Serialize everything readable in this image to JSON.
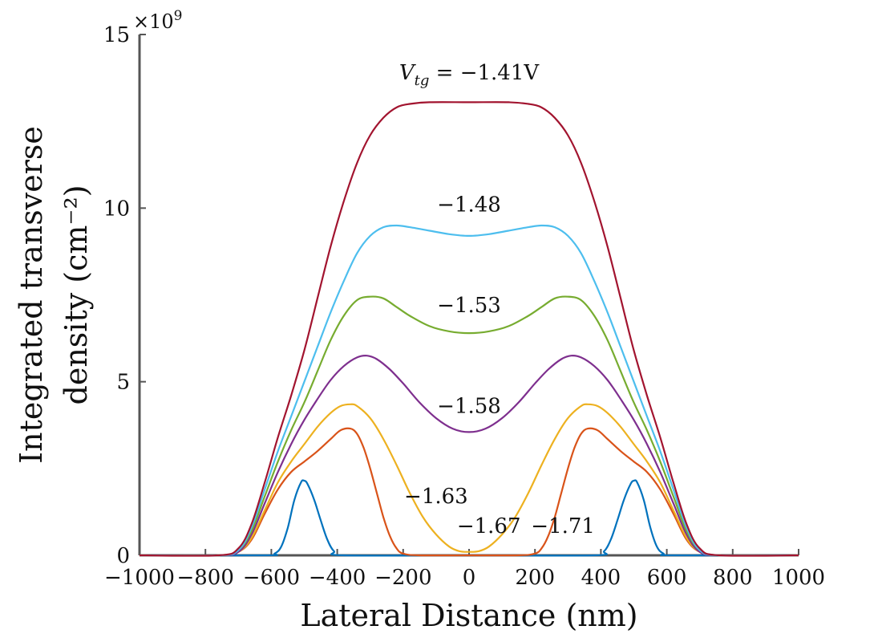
{
  "chart_data": {
    "type": "line",
    "title": "",
    "xlabel": "Lateral Distance (nm)",
    "ylabel_line1": "Integrated transverse",
    "ylabel_line2": "density (cm⁻²)",
    "xlim": [
      -1000,
      1000
    ],
    "ylim": [
      0,
      15
    ],
    "y_scale_label": "×10",
    "y_scale_exp": "9",
    "x_ticks": [
      -1000,
      -800,
      -600,
      -400,
      -200,
      0,
      200,
      400,
      600,
      800,
      1000
    ],
    "x_tick_labels": [
      "−1000",
      "−800",
      "−600",
      "−400",
      "−200",
      "0",
      "200",
      "400",
      "600",
      "800",
      "1000"
    ],
    "y_ticks": [
      0,
      5,
      10,
      15
    ],
    "y_tick_labels": [
      "0",
      "5",
      "10",
      "15"
    ],
    "grid": false,
    "series": [
      {
        "name": "V_tg = −1.41V",
        "color": "#A2142F",
        "x": [
          -1000,
          -760,
          -700,
          -660,
          -620,
          -580,
          -540,
          -500,
          -460,
          -420,
          -380,
          -340,
          -300,
          -260,
          -220,
          -180,
          -120,
          0,
          120,
          180,
          220,
          260,
          300,
          340,
          380,
          420,
          460,
          500,
          540,
          580,
          620,
          660,
          700,
          760,
          1000
        ],
        "y": [
          0,
          0,
          0.2,
          0.9,
          2.1,
          3.4,
          4.6,
          5.9,
          7.4,
          8.9,
          10.2,
          11.3,
          12.1,
          12.6,
          12.9,
          13.0,
          13.05,
          13.05,
          13.05,
          13.0,
          12.9,
          12.6,
          12.1,
          11.3,
          10.2,
          8.9,
          7.4,
          5.9,
          4.6,
          3.4,
          2.1,
          0.9,
          0.2,
          0,
          0
        ]
      },
      {
        "name": "−1.48",
        "color": "#4DBEEE",
        "x": [
          -1000,
          -760,
          -700,
          -660,
          -620,
          -580,
          -540,
          -500,
          -460,
          -420,
          -380,
          -340,
          -300,
          -260,
          -220,
          -180,
          -120,
          -60,
          0,
          60,
          120,
          180,
          220,
          260,
          300,
          340,
          380,
          420,
          460,
          500,
          540,
          580,
          620,
          660,
          700,
          760,
          1000
        ],
        "y": [
          0,
          0,
          0.15,
          0.8,
          1.9,
          3.0,
          4.0,
          5.0,
          6.0,
          7.0,
          7.9,
          8.7,
          9.2,
          9.45,
          9.5,
          9.45,
          9.35,
          9.25,
          9.2,
          9.25,
          9.35,
          9.45,
          9.5,
          9.45,
          9.2,
          8.7,
          7.9,
          7.0,
          6.0,
          5.0,
          4.0,
          3.0,
          1.9,
          0.8,
          0.15,
          0,
          0
        ]
      },
      {
        "name": "−1.53",
        "color": "#77AC30",
        "x": [
          -1000,
          -760,
          -700,
          -660,
          -620,
          -580,
          -540,
          -500,
          -460,
          -420,
          -380,
          -340,
          -300,
          -260,
          -220,
          -180,
          -120,
          -60,
          0,
          60,
          120,
          180,
          220,
          260,
          300,
          340,
          380,
          420,
          460,
          500,
          540,
          580,
          620,
          660,
          700,
          760,
          1000
        ],
        "y": [
          0,
          0,
          0.15,
          0.7,
          1.7,
          2.7,
          3.6,
          4.4,
          5.3,
          6.2,
          6.9,
          7.35,
          7.45,
          7.4,
          7.15,
          6.9,
          6.6,
          6.45,
          6.4,
          6.45,
          6.6,
          6.9,
          7.15,
          7.4,
          7.45,
          7.35,
          6.9,
          6.2,
          5.3,
          4.4,
          3.6,
          2.7,
          1.7,
          0.7,
          0.15,
          0,
          0
        ]
      },
      {
        "name": "−1.58",
        "color": "#7E2F8E",
        "x": [
          -1000,
          -760,
          -700,
          -660,
          -620,
          -580,
          -540,
          -500,
          -460,
          -420,
          -380,
          -340,
          -310,
          -280,
          -240,
          -200,
          -150,
          -100,
          -50,
          0,
          50,
          100,
          150,
          200,
          240,
          280,
          310,
          340,
          380,
          420,
          460,
          500,
          540,
          580,
          620,
          660,
          700,
          760,
          1000
        ],
        "y": [
          0,
          0,
          0.1,
          0.6,
          1.5,
          2.4,
          3.2,
          3.9,
          4.5,
          5.05,
          5.45,
          5.7,
          5.75,
          5.65,
          5.35,
          4.95,
          4.4,
          3.95,
          3.65,
          3.55,
          3.65,
          3.95,
          4.4,
          4.95,
          5.35,
          5.65,
          5.75,
          5.7,
          5.45,
          5.05,
          4.5,
          3.9,
          3.2,
          2.4,
          1.5,
          0.6,
          0.1,
          0,
          0
        ]
      },
      {
        "name": "−1.63",
        "color": "#EDB120",
        "x": [
          -1000,
          -760,
          -700,
          -660,
          -620,
          -580,
          -540,
          -500,
          -460,
          -420,
          -390,
          -360,
          -340,
          -300,
          -260,
          -220,
          -180,
          -140,
          -100,
          -60,
          -30,
          0,
          30,
          60,
          100,
          140,
          180,
          220,
          260,
          300,
          340,
          360,
          390,
          420,
          460,
          500,
          540,
          580,
          620,
          660,
          700,
          760,
          1000
        ],
        "y": [
          0,
          0,
          0.1,
          0.5,
          1.3,
          2.1,
          2.7,
          3.2,
          3.7,
          4.1,
          4.3,
          4.35,
          4.3,
          3.95,
          3.35,
          2.6,
          1.8,
          1.1,
          0.6,
          0.25,
          0.12,
          0.1,
          0.12,
          0.25,
          0.6,
          1.1,
          1.8,
          2.6,
          3.35,
          3.95,
          4.3,
          4.35,
          4.3,
          4.1,
          3.7,
          3.2,
          2.7,
          2.1,
          1.3,
          0.5,
          0.1,
          0,
          0
        ]
      },
      {
        "name": "−1.67",
        "color": "#D95319",
        "x": [
          -1000,
          -760,
          -700,
          -660,
          -620,
          -580,
          -540,
          -500,
          -460,
          -420,
          -390,
          -360,
          -340,
          -320,
          -300,
          -280,
          -260,
          -240,
          -220,
          -200,
          -150,
          0,
          150,
          200,
          220,
          240,
          260,
          280,
          300,
          320,
          340,
          360,
          390,
          420,
          460,
          500,
          540,
          580,
          620,
          660,
          700,
          760,
          1000
        ],
        "y": [
          0,
          0,
          0.1,
          0.45,
          1.2,
          1.9,
          2.4,
          2.7,
          3.0,
          3.35,
          3.6,
          3.65,
          3.5,
          3.1,
          2.5,
          1.8,
          1.1,
          0.55,
          0.2,
          0.05,
          0,
          0,
          0,
          0.05,
          0.2,
          0.55,
          1.1,
          1.8,
          2.5,
          3.1,
          3.5,
          3.65,
          3.6,
          3.35,
          3.0,
          2.7,
          2.4,
          1.9,
          1.2,
          0.45,
          0.1,
          0,
          0
        ]
      },
      {
        "name": "−1.71",
        "color": "#0072BD",
        "x": [
          -1000,
          -620,
          -590,
          -570,
          -550,
          -530,
          -510,
          -500,
          -490,
          -470,
          -450,
          -430,
          -410,
          -380,
          0,
          380,
          410,
          430,
          450,
          470,
          490,
          500,
          510,
          530,
          550,
          570,
          590,
          620,
          1000
        ],
        "y": [
          0,
          0,
          0.05,
          0.25,
          0.8,
          1.6,
          2.1,
          2.15,
          2.05,
          1.6,
          1.0,
          0.45,
          0.12,
          0,
          0,
          0,
          0.12,
          0.45,
          1.0,
          1.6,
          2.05,
          2.15,
          2.1,
          1.6,
          0.8,
          0.25,
          0.05,
          0,
          0
        ]
      }
    ],
    "annotations": [
      {
        "text_main": "V",
        "text_sub": "tg",
        "text_rest": " = −1.41V",
        "x": 0,
        "y": 13.7
      },
      {
        "text": "−1.48",
        "x": 0,
        "y": 9.9
      },
      {
        "text": "−1.53",
        "x": 0,
        "y": 7.0
      },
      {
        "text": "−1.58",
        "x": 0,
        "y": 4.1
      },
      {
        "text": "−1.63",
        "x": -100,
        "y": 1.5
      },
      {
        "text": "−1.67",
        "x": 60,
        "y": 0.65
      },
      {
        "text": "−1.71",
        "x": 285,
        "y": 0.65
      }
    ]
  }
}
